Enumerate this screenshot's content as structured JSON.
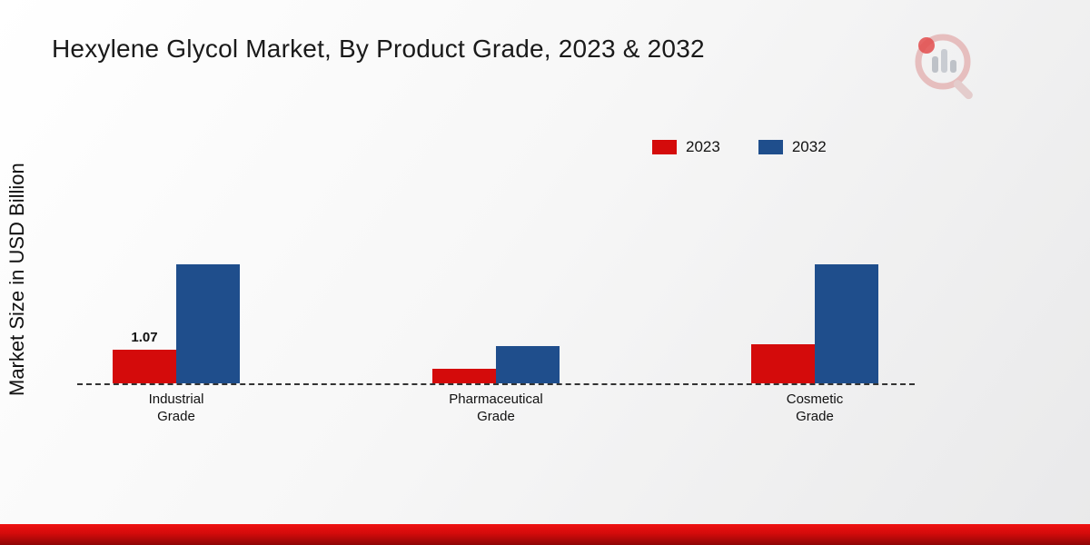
{
  "title": "Hexylene Glycol Market, By Product Grade, 2023 & 2032",
  "ylabel": "Market Size in USD Billion",
  "legend": {
    "items": [
      {
        "label": "2023",
        "color": "#d40b0b"
      },
      {
        "label": "2032",
        "color": "#1f4e8c"
      }
    ]
  },
  "colors": {
    "series_2023": "#d40b0b",
    "series_2032": "#1f4e8c",
    "baseline": "#333333",
    "bottom_band": "#d30b0b"
  },
  "chart_data": {
    "type": "bar",
    "title": "Hexylene Glycol Market, By Product Grade, 2023 & 2032",
    "xlabel": "",
    "ylabel": "Market Size in USD Billion",
    "ylim": [
      0,
      4.2
    ],
    "grid": false,
    "legend_position": "top-right",
    "categories": [
      "Industrial Grade",
      "Pharmaceutical Grade",
      "Cosmetic Grade"
    ],
    "series": [
      {
        "name": "2023",
        "color": "#d40b0b",
        "values": [
          1.07,
          0.45,
          1.25
        ],
        "labels": [
          "1.07",
          "",
          ""
        ]
      },
      {
        "name": "2032",
        "color": "#1f4e8c",
        "values": [
          3.8,
          1.2,
          3.8
        ],
        "labels": [
          "",
          "",
          ""
        ]
      }
    ]
  }
}
